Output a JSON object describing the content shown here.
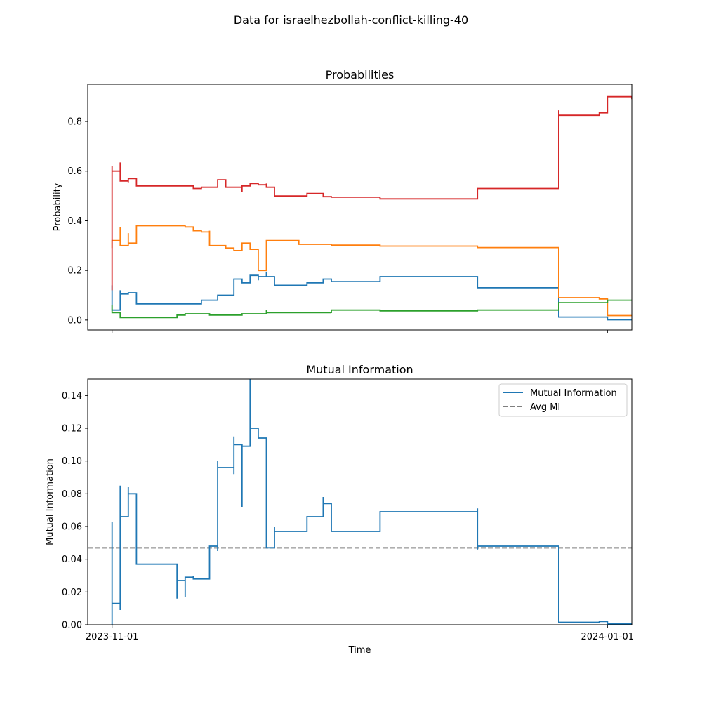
{
  "figure": {
    "suptitle": "Data for israelhezbollah-conflict-killing-40"
  },
  "chart_data": [
    {
      "type": "line",
      "step": true,
      "title": "Probabilities",
      "xlabel": "",
      "ylabel": "Probability",
      "xlim": [
        "2023-10-29",
        "2024-01-04"
      ],
      "ylim": [
        -0.04,
        0.95
      ],
      "yticks": [
        0.0,
        0.2,
        0.4,
        0.6,
        0.8
      ],
      "ytick_labels": [
        "0.0",
        "0.2",
        "0.4",
        "0.6",
        "0.8"
      ],
      "xticks": [
        "2023-11-01",
        "2024-01-01"
      ],
      "xtick_labels_shown": false,
      "grid": false,
      "series": [
        {
          "color": "#1f77b4",
          "points": [
            [
              "2023-11-01",
              0.14
            ],
            [
              "2023-11-01",
              0.05
            ],
            [
              "2023-11-01",
              0.04
            ],
            [
              "2023-11-02",
              0.12
            ],
            [
              "2023-11-02",
              0.105
            ],
            [
              "2023-11-03",
              0.11
            ],
            [
              "2023-11-03",
              0.105
            ],
            [
              "2023-11-03",
              0.108
            ],
            [
              "2023-11-03",
              0.11
            ],
            [
              "2023-11-04",
              0.065
            ],
            [
              "2023-11-09",
              0.065
            ],
            [
              "2023-11-12",
              0.065
            ],
            [
              "2023-11-12",
              0.08
            ],
            [
              "2023-11-14",
              0.08
            ],
            [
              "2023-11-14",
              0.1
            ],
            [
              "2023-11-15",
              0.1
            ],
            [
              "2023-11-16",
              0.165
            ],
            [
              "2023-11-17",
              0.165
            ],
            [
              "2023-11-17",
              0.15
            ],
            [
              "2023-11-18",
              0.18
            ],
            [
              "2023-11-19",
              0.16
            ],
            [
              "2023-11-19",
              0.175
            ],
            [
              "2023-11-20",
              0.195
            ],
            [
              "2023-11-20",
              0.175
            ],
            [
              "2023-11-21",
              0.17
            ],
            [
              "2023-11-21",
              0.14
            ],
            [
              "2023-11-25",
              0.14
            ],
            [
              "2023-11-25",
              0.15
            ],
            [
              "2023-11-27",
              0.15
            ],
            [
              "2023-11-27",
              0.165
            ],
            [
              "2023-11-28",
              0.155
            ],
            [
              "2023-12-04",
              0.155
            ],
            [
              "2023-12-04",
              0.175
            ],
            [
              "2023-12-16",
              0.175
            ],
            [
              "2023-12-16",
              0.13
            ],
            [
              "2023-12-26",
              0.13
            ],
            [
              "2023-12-26",
              0.012
            ],
            [
              "2024-01-01",
              0.012
            ],
            [
              "2024-01-01",
              0.001
            ],
            [
              "2024-01-04",
              0.001
            ]
          ]
        },
        {
          "color": "#ff7f0e",
          "points": [
            [
              "2023-11-01",
              0.29
            ],
            [
              "2023-11-01",
              0.32
            ],
            [
              "2023-11-02",
              0.32
            ],
            [
              "2023-11-02",
              0.375
            ],
            [
              "2023-11-02",
              0.3
            ],
            [
              "2023-11-03",
              0.35
            ],
            [
              "2023-11-03",
              0.31
            ],
            [
              "2023-11-04",
              0.31
            ],
            [
              "2023-11-04",
              0.38
            ],
            [
              "2023-11-09",
              0.38
            ],
            [
              "2023-11-10",
              0.375
            ],
            [
              "2023-11-11",
              0.36
            ],
            [
              "2023-11-12",
              0.355
            ],
            [
              "2023-11-13",
              0.36
            ],
            [
              "2023-11-13",
              0.3
            ],
            [
              "2023-11-15",
              0.3
            ],
            [
              "2023-11-15",
              0.29
            ],
            [
              "2023-11-16",
              0.28
            ],
            [
              "2023-11-17",
              0.31
            ],
            [
              "2023-11-18",
              0.285
            ],
            [
              "2023-11-19",
              0.24
            ],
            [
              "2023-11-19",
              0.2
            ],
            [
              "2023-11-20",
              0.245
            ],
            [
              "2023-11-20",
              0.32
            ],
            [
              "2023-11-24",
              0.32
            ],
            [
              "2023-11-24",
              0.305
            ],
            [
              "2023-11-27",
              0.305
            ],
            [
              "2023-11-28",
              0.302
            ],
            [
              "2023-12-04",
              0.302
            ],
            [
              "2023-12-04",
              0.298
            ],
            [
              "2023-12-16",
              0.298
            ],
            [
              "2023-12-16",
              0.292
            ],
            [
              "2023-12-26",
              0.292
            ],
            [
              "2023-12-26",
              0.09
            ],
            [
              "2023-12-31",
              0.09
            ],
            [
              "2023-12-31",
              0.085
            ],
            [
              "2024-01-01",
              0.085
            ],
            [
              "2024-01-01",
              0.018
            ],
            [
              "2024-01-04",
              0.018
            ]
          ]
        },
        {
          "color": "#2ca02c",
          "points": [
            [
              "2023-11-01",
              0.06
            ],
            [
              "2023-11-01",
              0.03
            ],
            [
              "2023-11-02",
              0.03
            ],
            [
              "2023-11-02",
              0.01
            ],
            [
              "2023-11-09",
              0.01
            ],
            [
              "2023-11-09",
              0.02
            ],
            [
              "2023-11-10",
              0.02
            ],
            [
              "2023-11-10",
              0.025
            ],
            [
              "2023-11-13",
              0.025
            ],
            [
              "2023-11-13",
              0.02
            ],
            [
              "2023-11-15",
              0.02
            ],
            [
              "2023-11-16",
              0.02
            ],
            [
              "2023-11-17",
              0.025
            ],
            [
              "2023-11-19",
              0.025
            ],
            [
              "2023-11-20",
              0.04
            ],
            [
              "2023-11-20",
              0.03
            ],
            [
              "2023-11-27",
              0.03
            ],
            [
              "2023-11-28",
              0.028
            ],
            [
              "2023-11-28",
              0.04
            ],
            [
              "2023-12-04",
              0.04
            ],
            [
              "2023-12-04",
              0.037
            ],
            [
              "2023-12-16",
              0.037
            ],
            [
              "2023-12-16",
              0.04
            ],
            [
              "2023-12-26",
              0.04
            ],
            [
              "2023-12-26",
              0.07
            ],
            [
              "2024-01-01",
              0.07
            ],
            [
              "2024-01-01",
              0.08
            ],
            [
              "2024-01-04",
              0.08
            ]
          ]
        },
        {
          "color": "#d62728",
          "points": [
            [
              "2023-11-01",
              0.12
            ],
            [
              "2023-11-01",
              0.62
            ],
            [
              "2023-11-01",
              0.6
            ],
            [
              "2023-11-02",
              0.6
            ],
            [
              "2023-11-02",
              0.635
            ],
            [
              "2023-11-02",
              0.56
            ],
            [
              "2023-11-03",
              0.555
            ],
            [
              "2023-11-03",
              0.57
            ],
            [
              "2023-11-04",
              0.57
            ],
            [
              "2023-11-04",
              0.54
            ],
            [
              "2023-11-09",
              0.54
            ],
            [
              "2023-11-11",
              0.54
            ],
            [
              "2023-11-11",
              0.53
            ],
            [
              "2023-11-12",
              0.535
            ],
            [
              "2023-11-14",
              0.535
            ],
            [
              "2023-11-14",
              0.565
            ],
            [
              "2023-11-15",
              0.565
            ],
            [
              "2023-11-15",
              0.535
            ],
            [
              "2023-11-16",
              0.535
            ],
            [
              "2023-11-17",
              0.515
            ],
            [
              "2023-11-17",
              0.54
            ],
            [
              "2023-11-18",
              0.55
            ],
            [
              "2023-11-19",
              0.545
            ],
            [
              "2023-11-20",
              0.55
            ],
            [
              "2023-11-20",
              0.535
            ],
            [
              "2023-11-21",
              0.535
            ],
            [
              "2023-11-21",
              0.5
            ],
            [
              "2023-11-25",
              0.5
            ],
            [
              "2023-11-25",
              0.51
            ],
            [
              "2023-11-27",
              0.51
            ],
            [
              "2023-11-27",
              0.497
            ],
            [
              "2023-11-28",
              0.497
            ],
            [
              "2023-11-28",
              0.495
            ],
            [
              "2023-12-04",
              0.495
            ],
            [
              "2023-12-04",
              0.488
            ],
            [
              "2023-12-16",
              0.488
            ],
            [
              "2023-12-16",
              0.53
            ],
            [
              "2023-12-26",
              0.53
            ],
            [
              "2023-12-26",
              0.845
            ],
            [
              "2023-12-26",
              0.825
            ],
            [
              "2023-12-31",
              0.825
            ],
            [
              "2023-12-31",
              0.835
            ],
            [
              "2024-01-01",
              0.835
            ],
            [
              "2024-01-01",
              0.9
            ],
            [
              "2024-01-04",
              0.9
            ],
            [
              "2024-01-04",
              0.89
            ]
          ]
        }
      ]
    },
    {
      "type": "line",
      "step": true,
      "title": "Mutual Information",
      "xlabel": "Time",
      "ylabel": "Mutual Information",
      "xlim": [
        "2023-10-29",
        "2024-01-04"
      ],
      "ylim": [
        0.0,
        0.15
      ],
      "yticks": [
        0.0,
        0.02,
        0.04,
        0.06,
        0.08,
        0.1,
        0.12,
        0.14
      ],
      "ytick_labels": [
        "0.00",
        "0.02",
        "0.04",
        "0.06",
        "0.08",
        "0.10",
        "0.12",
        "0.14"
      ],
      "xticks": [
        "2023-11-01",
        "2024-01-01"
      ],
      "xtick_labels": [
        "2023-11-01",
        "2024-01-01"
      ],
      "grid": false,
      "legend": {
        "placement": "upper right",
        "entries": [
          "Mutual Information",
          "Avg MI"
        ]
      },
      "avg_mi": 0.047,
      "avg_mi_color": "#7f7f7f",
      "series": [
        {
          "name": "Mutual Information",
          "color": "#1f77b4",
          "points": [
            [
              "2023-11-01",
              0.018
            ],
            [
              "2023-11-01",
              0.063
            ],
            [
              "2023-11-01",
              0.0
            ],
            [
              "2023-11-01",
              0.013
            ],
            [
              "2023-11-02",
              0.013
            ],
            [
              "2023-11-02",
              0.04
            ],
            [
              "2023-11-02",
              0.009
            ],
            [
              "2023-11-02",
              0.085
            ],
            [
              "2023-11-02",
              0.066
            ],
            [
              "2023-11-03",
              0.084
            ],
            [
              "2023-11-03",
              0.08
            ],
            [
              "2023-11-04",
              0.08
            ],
            [
              "2023-11-04",
              0.037
            ],
            [
              "2023-11-09",
              0.037
            ],
            [
              "2023-11-09",
              0.016
            ],
            [
              "2023-11-09",
              0.027
            ],
            [
              "2023-11-10",
              0.027
            ],
            [
              "2023-11-10",
              0.017
            ],
            [
              "2023-11-10",
              0.029
            ],
            [
              "2023-11-11",
              0.03
            ],
            [
              "2023-11-11",
              0.028
            ],
            [
              "2023-11-13",
              0.028
            ],
            [
              "2023-11-13",
              0.048
            ],
            [
              "2023-11-14",
              0.048
            ],
            [
              "2023-11-14",
              0.045
            ],
            [
              "2023-11-14",
              0.1
            ],
            [
              "2023-11-14",
              0.096
            ],
            [
              "2023-11-16",
              0.096
            ],
            [
              "2023-11-16",
              0.115
            ],
            [
              "2023-11-16",
              0.092
            ],
            [
              "2023-11-16",
              0.11
            ],
            [
              "2023-11-17",
              0.072
            ],
            [
              "2023-11-17",
              0.109
            ],
            [
              "2023-11-18",
              0.109
            ],
            [
              "2023-11-18",
              0.15
            ],
            [
              "2023-11-18",
              0.12
            ],
            [
              "2023-11-19",
              0.114
            ],
            [
              "2023-11-20",
              0.114
            ],
            [
              "2023-11-20",
              0.083
            ],
            [
              "2023-11-20",
              0.047
            ],
            [
              "2023-11-21",
              0.06
            ],
            [
              "2023-11-21",
              0.057
            ],
            [
              "2023-11-25",
              0.057
            ],
            [
              "2023-11-25",
              0.066
            ],
            [
              "2023-11-27",
              0.066
            ],
            [
              "2023-11-27",
              0.078
            ],
            [
              "2023-11-27",
              0.074
            ],
            [
              "2023-11-28",
              0.074
            ],
            [
              "2023-11-28",
              0.057
            ],
            [
              "2023-12-04",
              0.057
            ],
            [
              "2023-12-04",
              0.069
            ],
            [
              "2023-12-16",
              0.069
            ],
            [
              "2023-12-16",
              0.071
            ],
            [
              "2023-12-16",
              0.046
            ],
            [
              "2023-12-16",
              0.048
            ],
            [
              "2023-12-26",
              0.048
            ],
            [
              "2023-12-26",
              0.0015
            ],
            [
              "2023-12-31",
              0.0015
            ],
            [
              "2023-12-31",
              0.002
            ],
            [
              "2024-01-01",
              0.0005
            ],
            [
              "2024-01-04",
              0.0005
            ]
          ]
        }
      ]
    }
  ]
}
